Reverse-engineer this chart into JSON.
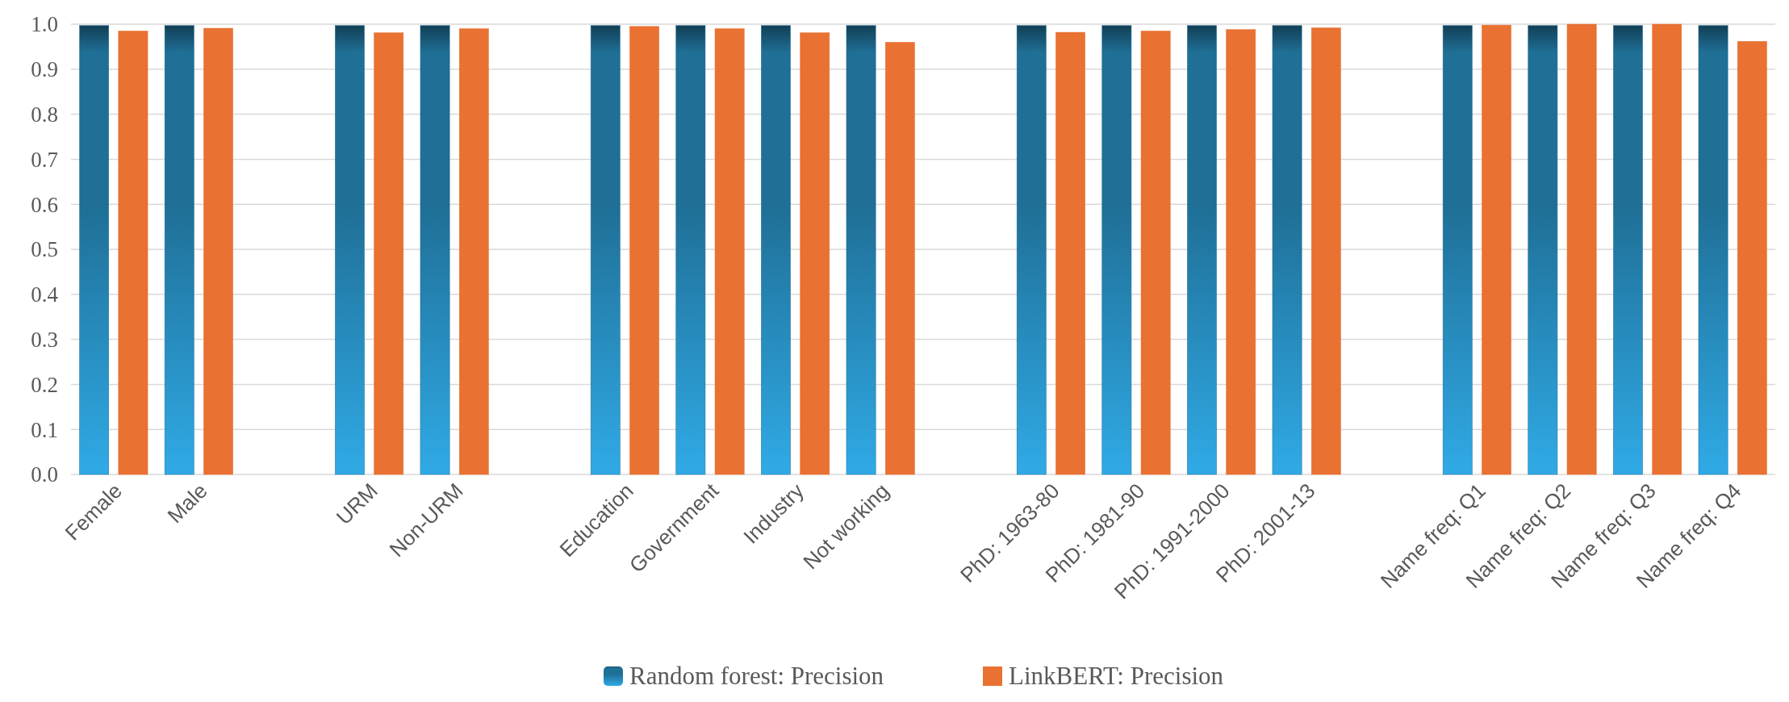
{
  "chart_data": {
    "type": "bar",
    "categories": [
      "Female",
      "Male",
      null,
      "URM",
      "Non-URM",
      null,
      "Education",
      "Government",
      "Industry",
      "Not working",
      null,
      "PhD: 1963-80",
      "PhD: 1981-90",
      "PhD: 1991-2000",
      "PhD: 2001-13",
      null,
      "Name freq: Q1",
      "Name freq: Q2",
      "Name freq: Q3",
      "Name freq: Q4"
    ],
    "series": [
      {
        "name": "Random forest: Precision",
        "color": "#1f6f96",
        "values": [
          0.997,
          0.997,
          null,
          0.997,
          0.997,
          null,
          0.997,
          0.997,
          0.997,
          0.997,
          null,
          0.997,
          0.997,
          0.997,
          0.997,
          null,
          0.997,
          0.997,
          0.997,
          0.997
        ]
      },
      {
        "name": "LinkBERT: Precision",
        "color": "#e97132",
        "values": [
          0.985,
          0.991,
          null,
          0.981,
          0.99,
          null,
          0.995,
          0.99,
          0.981,
          0.96,
          null,
          0.982,
          0.985,
          0.988,
          0.992,
          null,
          0.998,
          1.0,
          1.0,
          0.962
        ]
      }
    ],
    "ylim": [
      0,
      1.0
    ],
    "yticks": [
      {
        "value": 0,
        "label": "0.0"
      },
      0.1,
      0.2,
      0.3,
      0.4,
      0.5,
      0.6,
      0.7,
      0.8,
      0.9,
      {
        "value": 1,
        "label": "1.0"
      }
    ],
    "grid": "y",
    "legend": "bottom"
  }
}
